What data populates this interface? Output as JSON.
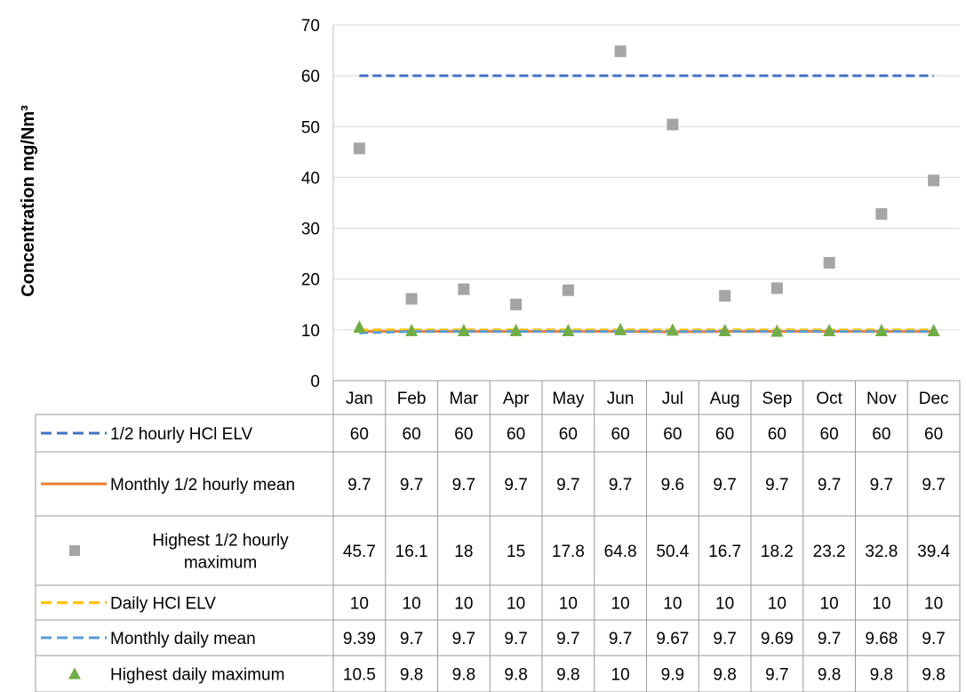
{
  "chart_data": {
    "type": "line",
    "title": "",
    "ylabel": "Concentration mg/Nm³",
    "xlabel": "",
    "ylim": [
      0,
      70
    ],
    "yticks": [
      0,
      10,
      20,
      30,
      40,
      50,
      60,
      70
    ],
    "grid": "horizontal",
    "legend": "data-table",
    "categories": [
      "Jan",
      "Feb",
      "Mar",
      "Apr",
      "May",
      "Jun",
      "Jul",
      "Aug",
      "Sep",
      "Oct",
      "Nov",
      "Dec"
    ],
    "series": [
      {
        "name": "1/2 hourly HCl ELV",
        "style": "dashed-line",
        "color": "#4472C4",
        "values": [
          60,
          60,
          60,
          60,
          60,
          60,
          60,
          60,
          60,
          60,
          60,
          60
        ],
        "labels": [
          "60",
          "60",
          "60",
          "60",
          "60",
          "60",
          "60",
          "60",
          "60",
          "60",
          "60",
          "60"
        ]
      },
      {
        "name": "Monthly 1/2 hourly mean",
        "style": "solid-line",
        "color": "#ED7D31",
        "values": [
          9.7,
          9.7,
          9.7,
          9.7,
          9.7,
          9.7,
          9.6,
          9.7,
          9.7,
          9.7,
          9.7,
          9.7
        ],
        "labels": [
          "9.7",
          "9.7",
          "9.7",
          "9.7",
          "9.7",
          "9.7",
          "9.6",
          "9.7",
          "9.7",
          "9.7",
          "9.7",
          "9.7"
        ]
      },
      {
        "name": "Highest 1/2 hourly maximum",
        "style": "square-marker",
        "color": "#A5A5A5",
        "values": [
          45.7,
          16.1,
          18,
          15,
          17.8,
          64.8,
          50.4,
          16.7,
          18.2,
          23.2,
          32.8,
          39.4
        ],
        "labels": [
          "45.7",
          "16.1",
          "18",
          "15",
          "17.8",
          "64.8",
          "50.4",
          "16.7",
          "18.2",
          "23.2",
          "32.8",
          "39.4"
        ]
      },
      {
        "name": "Daily HCl ELV",
        "style": "dashed-line",
        "color": "#FFC000",
        "values": [
          10,
          10,
          10,
          10,
          10,
          10,
          10,
          10,
          10,
          10,
          10,
          10
        ],
        "labels": [
          "10",
          "10",
          "10",
          "10",
          "10",
          "10",
          "10",
          "10",
          "10",
          "10",
          "10",
          "10"
        ]
      },
      {
        "name": "Monthly daily mean",
        "style": "dashed-line",
        "color": "#5B9BD5",
        "values": [
          9.39,
          9.7,
          9.7,
          9.7,
          9.7,
          9.7,
          9.67,
          9.7,
          9.69,
          9.7,
          9.68,
          9.7
        ],
        "labels": [
          "9.39",
          "9.7",
          "9.7",
          "9.7",
          "9.7",
          "9.7",
          "9.67",
          "9.7",
          "9.69",
          "9.7",
          "9.68",
          "9.7"
        ]
      },
      {
        "name": "Highest daily maximum",
        "style": "triangle-marker",
        "color": "#70AD47",
        "values": [
          10.5,
          9.8,
          9.8,
          9.8,
          9.8,
          10,
          9.9,
          9.8,
          9.7,
          9.8,
          9.8,
          9.8
        ],
        "labels": [
          "10.5",
          "9.8",
          "9.8",
          "9.8",
          "9.8",
          "10",
          "9.9",
          "9.8",
          "9.7",
          "9.8",
          "9.8",
          "9.8"
        ]
      }
    ]
  }
}
